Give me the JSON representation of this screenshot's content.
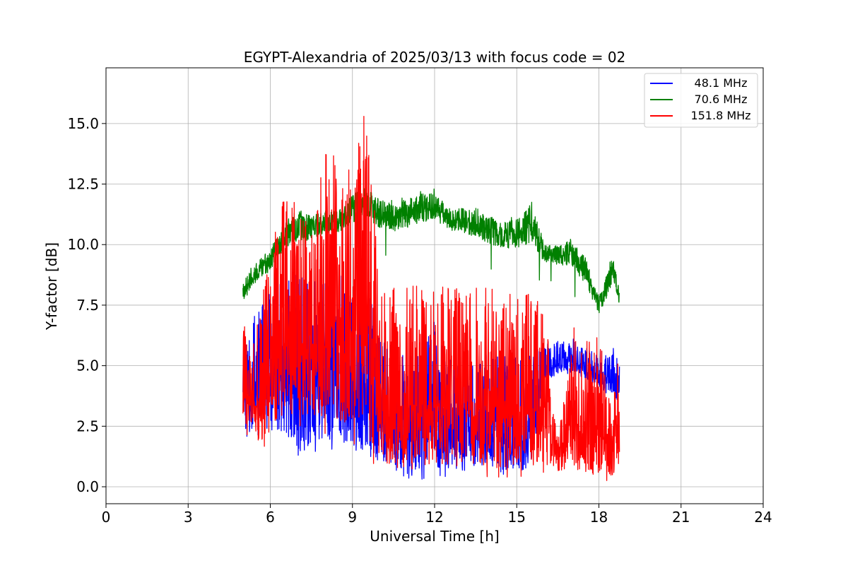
{
  "chart_data": {
    "type": "line",
    "title": "EGYPT-Alexandria of 2025/03/13 with focus code = 02",
    "xlabel": "Universal Time [h]",
    "ylabel": "Y-factor [dB]",
    "xlim": [
      0,
      24
    ],
    "ylim": [
      -0.7,
      17.3
    ],
    "xticks": [
      0,
      3,
      6,
      9,
      12,
      15,
      18,
      21,
      24
    ],
    "xtick_labels": [
      "0",
      "3",
      "6",
      "9",
      "12",
      "15",
      "18",
      "21",
      "24"
    ],
    "yticks": [
      0.0,
      2.5,
      5.0,
      7.5,
      10.0,
      12.5,
      15.0
    ],
    "ytick_labels": [
      "0.0",
      "2.5",
      "5.0",
      "7.5",
      "10.0",
      "12.5",
      "15.0"
    ],
    "grid": true,
    "legend_position": "top-right",
    "series": [
      {
        "name": "48.1 MHz",
        "color": "#0000ff",
        "envelope": {
          "x": [
            5.0,
            5.5,
            6.0,
            6.5,
            7.0,
            7.5,
            8.0,
            8.5,
            9.0,
            9.5,
            10.0,
            10.5,
            11.0,
            11.5,
            12.0,
            12.5,
            13.0,
            13.5,
            14.0,
            14.5,
            15.0,
            15.5,
            16.0,
            16.5,
            17.0,
            17.5,
            18.0,
            18.5,
            18.75
          ],
          "low": [
            2.2,
            1.8,
            1.9,
            2.0,
            0.8,
            1.4,
            1.6,
            1.5,
            1.2,
            0.9,
            0.6,
            0.5,
            0.0,
            0.3,
            0.5,
            0.4,
            0.4,
            0.5,
            0.4,
            0.2,
            0.4,
            0.5,
            4.2,
            4.5,
            4.6,
            4.4,
            4.0,
            3.5,
            3.4
          ],
          "high": [
            6.8,
            7.2,
            8.0,
            8.5,
            8.8,
            8.9,
            8.8,
            8.7,
            8.8,
            8.5,
            6.3,
            6.0,
            5.8,
            5.6,
            7.0,
            5.2,
            5.4,
            5.1,
            5.9,
            5.5,
            5.3,
            5.4,
            5.9,
            6.0,
            6.2,
            5.8,
            5.6,
            5.8,
            5.0
          ]
        }
      },
      {
        "name": "70.6 MHz",
        "color": "#008000",
        "envelope": {
          "x": [
            5.0,
            5.5,
            6.0,
            6.5,
            7.0,
            7.5,
            8.0,
            8.5,
            9.0,
            9.5,
            10.0,
            10.5,
            11.0,
            11.5,
            12.0,
            12.5,
            13.0,
            13.5,
            14.0,
            14.5,
            15.0,
            15.5,
            16.0,
            16.5,
            17.0,
            17.5,
            18.0,
            18.5,
            18.75
          ],
          "low": [
            7.0,
            7.6,
            8.1,
            8.9,
            9.0,
            9.2,
            9.5,
            9.7,
            9.8,
            10.0,
            9.6,
            9.5,
            9.6,
            9.8,
            10.0,
            9.8,
            9.6,
            9.3,
            9.0,
            8.9,
            8.7,
            8.6,
            8.5,
            8.5,
            8.0,
            7.4,
            6.5,
            7.2,
            6.8
          ],
          "high": [
            8.5,
            9.4,
            9.9,
            11.0,
            11.6,
            11.3,
            11.5,
            11.5,
            12.2,
            12.5,
            12.0,
            11.8,
            12.0,
            12.2,
            12.3,
            11.6,
            11.6,
            11.5,
            11.3,
            11.0,
            11.2,
            11.9,
            10.2,
            10.0,
            10.4,
            9.6,
            7.9,
            9.6,
            8.3
          ]
        }
      },
      {
        "name": "151.8 MHz",
        "color": "#ff0000",
        "envelope": {
          "x": [
            5.0,
            5.5,
            6.0,
            6.5,
            7.0,
            7.5,
            8.0,
            8.5,
            9.0,
            9.5,
            10.0,
            10.5,
            11.0,
            11.5,
            12.0,
            12.5,
            13.0,
            13.5,
            14.0,
            14.5,
            15.0,
            15.5,
            16.0,
            16.5,
            17.0,
            17.5,
            18.0,
            18.5,
            18.75
          ],
          "low": [
            2.0,
            1.5,
            1.8,
            2.4,
            2.5,
            2.6,
            2.2,
            2.0,
            1.8,
            1.5,
            0.5,
            0.4,
            0.3,
            0.4,
            0.6,
            0.4,
            0.4,
            0.5,
            0.4,
            0.4,
            0.4,
            0.5,
            0.6,
            0.5,
            0.6,
            0.1,
            0.2,
            0.3,
            0.4
          ],
          "high": [
            6.8,
            6.6,
            9.6,
            12.3,
            11.6,
            11.0,
            14.1,
            13.4,
            13.5,
            16.5,
            8.5,
            8.3,
            8.2,
            8.4,
            8.4,
            8.3,
            8.1,
            8.2,
            8.2,
            8.0,
            7.9,
            8.1,
            7.7,
            1.8,
            6.6,
            6.4,
            6.3,
            3.0,
            6.5
          ]
        }
      }
    ]
  }
}
